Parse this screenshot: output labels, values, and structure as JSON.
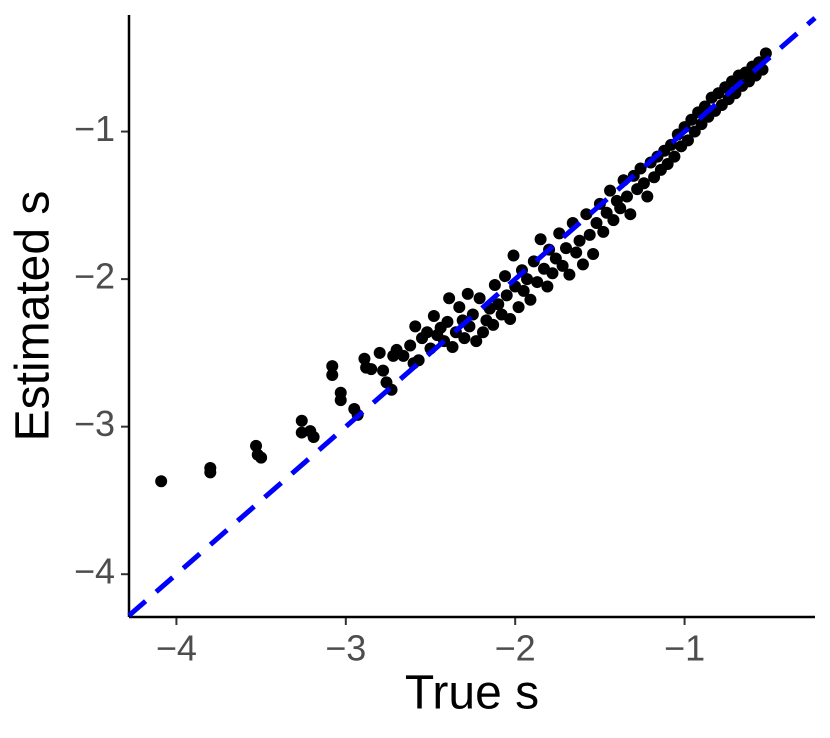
{
  "chart_data": {
    "type": "scatter",
    "x_label": "True s",
    "y_label": "Estimated s",
    "xlim": [
      -4.28,
      -0.23
    ],
    "ylim": [
      -4.29,
      -0.21
    ],
    "xticks": [
      {
        "value": -4,
        "label": "−4"
      },
      {
        "value": -3,
        "label": "−3"
      },
      {
        "value": -2,
        "label": "−2"
      },
      {
        "value": -1,
        "label": "−1"
      }
    ],
    "yticks": [
      {
        "value": -4,
        "label": "−4"
      },
      {
        "value": -3,
        "label": "−3"
      },
      {
        "value": -2,
        "label": "−2"
      },
      {
        "value": -1,
        "label": "−1"
      }
    ],
    "color": "#000000",
    "identity_line": true,
    "identity_line_color": "#0000ff",
    "x": [
      -4.09,
      -3.8,
      -3.8,
      -3.53,
      -3.52,
      -3.5,
      -3.26,
      -3.26,
      -3.21,
      -3.19,
      -3.08,
      -3.08,
      -3.03,
      -3.03,
      -2.95,
      -2.93,
      -2.89,
      -2.88,
      -2.85,
      -2.8,
      -2.78,
      -2.76,
      -2.73,
      -2.72,
      -2.7,
      -2.66,
      -2.62,
      -2.6,
      -2.59,
      -2.57,
      -2.55,
      -2.52,
      -2.5,
      -2.48,
      -2.46,
      -2.44,
      -2.42,
      -2.4,
      -2.39,
      -2.37,
      -2.35,
      -2.33,
      -2.31,
      -2.3,
      -2.28,
      -2.27,
      -2.25,
      -2.23,
      -2.21,
      -2.19,
      -2.17,
      -2.15,
      -2.13,
      -2.12,
      -2.1,
      -2.08,
      -2.06,
      -2.05,
      -2.03,
      -2.01,
      -2.0,
      -1.98,
      -1.96,
      -1.95,
      -1.93,
      -1.91,
      -1.89,
      -1.87,
      -1.85,
      -1.83,
      -1.81,
      -1.8,
      -1.78,
      -1.76,
      -1.74,
      -1.72,
      -1.7,
      -1.68,
      -1.66,
      -1.64,
      -1.62,
      -1.6,
      -1.58,
      -1.56,
      -1.54,
      -1.52,
      -1.5,
      -1.48,
      -1.46,
      -1.44,
      -1.42,
      -1.4,
      -1.38,
      -1.36,
      -1.34,
      -1.32,
      -1.3,
      -1.28,
      -1.26,
      -1.24,
      -1.22,
      -1.2,
      -1.18,
      -1.16,
      -1.14,
      -1.12,
      -1.1,
      -1.08,
      -1.06,
      -1.04,
      -1.02,
      -1.0,
      -0.98,
      -0.96,
      -0.94,
      -0.92,
      -0.9,
      -0.88,
      -0.86,
      -0.84,
      -0.82,
      -0.8,
      -0.78,
      -0.76,
      -0.74,
      -0.72,
      -0.7,
      -0.68,
      -0.66,
      -0.64,
      -0.62,
      -0.6,
      -0.58,
      -0.56,
      -0.54,
      -0.52
    ],
    "y": [
      -3.37,
      -3.28,
      -3.31,
      -3.13,
      -3.19,
      -3.21,
      -2.96,
      -3.04,
      -3.03,
      -3.07,
      -2.59,
      -2.65,
      -2.77,
      -2.82,
      -2.88,
      -2.92,
      -2.54,
      -2.6,
      -2.61,
      -2.5,
      -2.62,
      -2.7,
      -2.75,
      -2.52,
      -2.48,
      -2.52,
      -2.45,
      -2.57,
      -2.32,
      -2.55,
      -2.4,
      -2.36,
      -2.47,
      -2.25,
      -2.38,
      -2.33,
      -2.42,
      -2.29,
      -2.13,
      -2.46,
      -2.36,
      -2.19,
      -2.28,
      -2.4,
      -2.1,
      -2.32,
      -2.24,
      -2.42,
      -2.13,
      -2.36,
      -2.28,
      -2.2,
      -2.31,
      -2.04,
      -2.17,
      -2.24,
      -1.98,
      -2.11,
      -2.27,
      -1.84,
      -2.05,
      -2.19,
      -1.94,
      -2.08,
      -2.0,
      -2.14,
      -1.88,
      -2.02,
      -1.73,
      -1.93,
      -2.05,
      -1.8,
      -1.96,
      -1.86,
      -1.69,
      -1.91,
      -1.79,
      -1.97,
      -1.62,
      -1.82,
      -1.74,
      -1.9,
      -1.56,
      -1.7,
      -1.83,
      -1.62,
      -1.49,
      -1.68,
      -1.55,
      -1.4,
      -1.6,
      -1.47,
      -1.52,
      -1.33,
      -1.44,
      -1.56,
      -1.3,
      -1.39,
      -1.25,
      -1.35,
      -1.44,
      -1.21,
      -1.31,
      -1.17,
      -1.26,
      -1.13,
      -1.22,
      -1.09,
      -1.17,
      -1.02,
      -1.1,
      -0.97,
      -1.06,
      -0.92,
      -1.0,
      -0.87,
      -0.95,
      -0.83,
      -0.9,
      -0.77,
      -0.86,
      -0.74,
      -0.82,
      -0.7,
      -0.78,
      -0.66,
      -0.74,
      -0.62,
      -0.69,
      -0.6,
      -0.66,
      -0.56,
      -0.62,
      -0.53,
      -0.58,
      -0.47
    ]
  }
}
